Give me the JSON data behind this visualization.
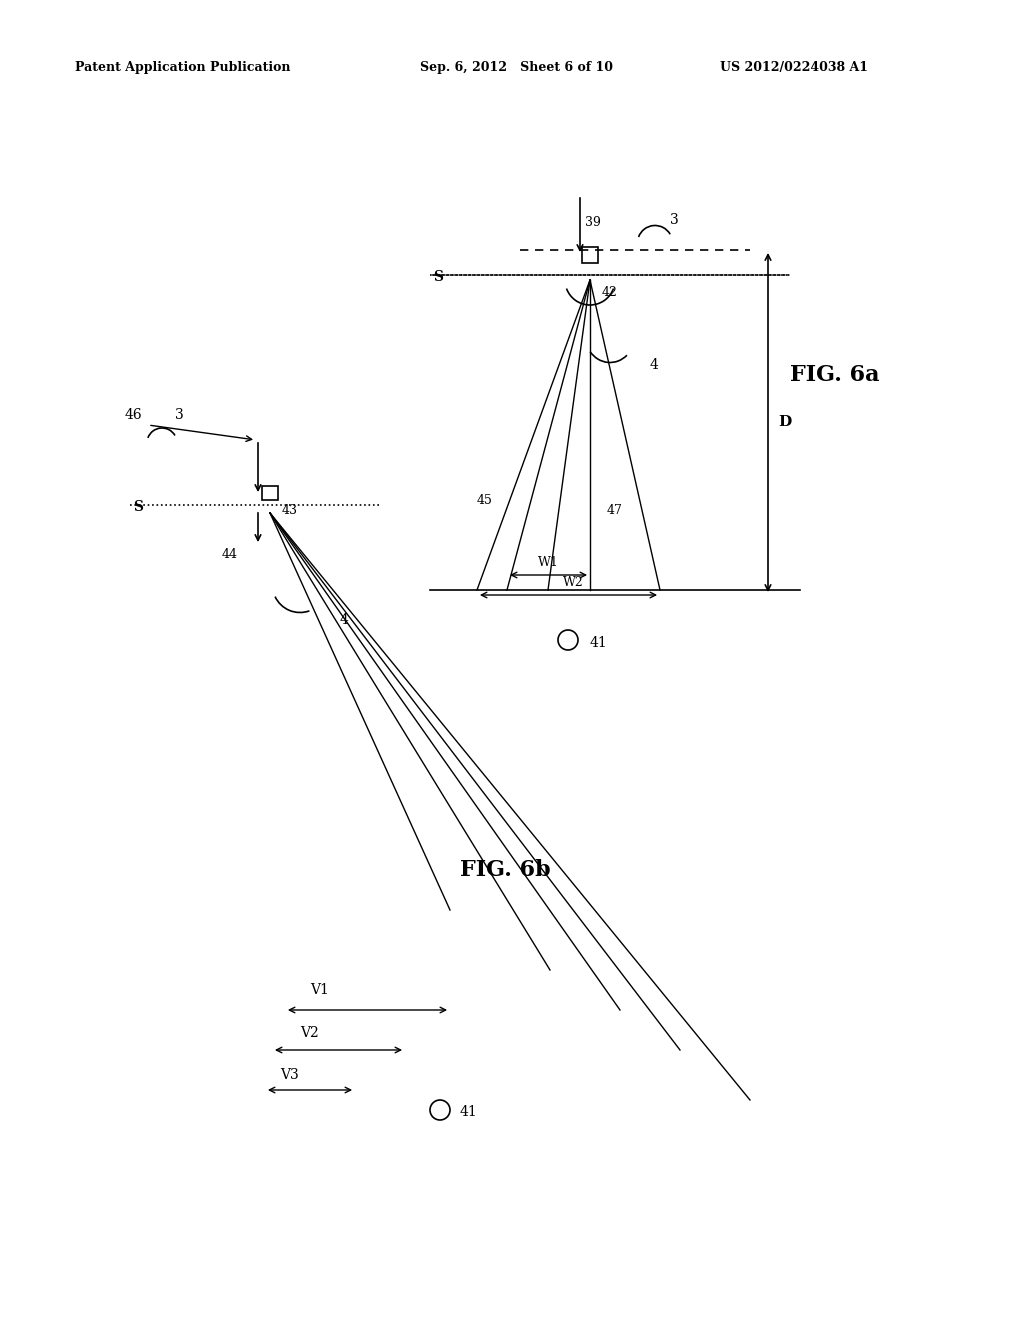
{
  "bg_color": "#ffffff",
  "header_left": "Patent Application Publication",
  "header_mid": "Sep. 6, 2012   Sheet 6 of 10",
  "header_right": "US 2012/0224038 A1",
  "fig6a_label": "FIG. 6a",
  "fig6b_label": "FIG. 6b",
  "label_D": "D",
  "label_S": "S",
  "label_W1": "W1",
  "label_W2": "W2",
  "label_39": "39",
  "label_3a": "3",
  "label_42": "42",
  "label_4a": "4",
  "label_45": "45",
  "label_47": "47",
  "label_41a": "41",
  "label_46": "46",
  "label_3b": "3",
  "label_Sb": "S",
  "label_43": "43",
  "label_44": "44",
  "label_4b": "4",
  "label_V1": "V1",
  "label_V2": "V2",
  "label_V3": "V3",
  "label_41b": "41"
}
